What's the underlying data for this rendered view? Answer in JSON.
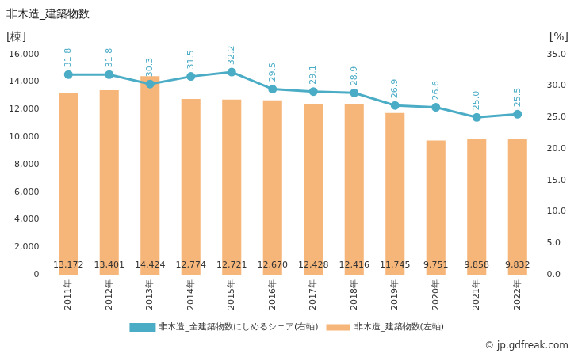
{
  "chart_data": {
    "type": "bar",
    "title": "非木造_建築物数",
    "y_label": "[棟]",
    "y2_label": "[%]",
    "source": "© jp.gdfreak.com",
    "categories": [
      "2011年",
      "2012年",
      "2013年",
      "2014年",
      "2015年",
      "2016年",
      "2017年",
      "2018年",
      "2019年",
      "2020年",
      "2021年",
      "2022年"
    ],
    "series": [
      {
        "name": "非木造_建築物数(左軸)",
        "type": "bar",
        "color": "#f5a862",
        "values": [
          13172,
          13401,
          14424,
          12774,
          12721,
          12670,
          12428,
          12416,
          11745,
          9751,
          9858,
          9832
        ],
        "value_labels": [
          "13,172",
          "13,401",
          "14,424",
          "12,774",
          "12,721",
          "12,670",
          "12,428",
          "12,416",
          "11,745",
          "9,751",
          "9,858",
          "9,832"
        ]
      },
      {
        "name": "非木造_全建築物数にしめるシェア(右軸)",
        "type": "line",
        "axis": "y2",
        "color": "#4bacc6",
        "marker": "circle",
        "values": [
          31.8,
          31.8,
          30.3,
          31.5,
          32.2,
          29.5,
          29.1,
          28.9,
          26.9,
          26.6,
          25.0,
          25.5
        ],
        "value_labels": [
          "31.8",
          "31.8",
          "30.3",
          "31.5",
          "32.2",
          "29.5",
          "29.1",
          "28.9",
          "26.9",
          "26.6",
          "25.0",
          "25.5"
        ]
      }
    ],
    "ylim": [
      0,
      16000
    ],
    "yticks": [
      0,
      {
        "value": 2000,
        "label": "2,000"
      },
      {
        "value": 4000,
        "label": "4,000"
      },
      {
        "value": 6000,
        "label": "6,000"
      },
      {
        "value": 8000,
        "label": "8,000"
      },
      {
        "value": 10000,
        "label": "10,000"
      },
      {
        "value": 12000,
        "label": "12,000"
      },
      {
        "value": 14000,
        "label": "14,000"
      },
      {
        "value": 16000,
        "label": "16,000"
      }
    ],
    "y2lim": [
      0,
      35
    ],
    "y2ticks": [
      {
        "value": 0,
        "label": "0.0"
      },
      {
        "value": 5,
        "label": "5.0"
      },
      {
        "value": 10,
        "label": "10.0"
      },
      {
        "value": 15,
        "label": "15.0"
      },
      {
        "value": 20,
        "label": "20.0"
      },
      {
        "value": 25,
        "label": "25.0"
      },
      {
        "value": 30,
        "label": "30.0"
      },
      {
        "value": 35,
        "label": "35.0"
      }
    ],
    "grid": false,
    "legend": "bottom",
    "data_labels": true
  }
}
